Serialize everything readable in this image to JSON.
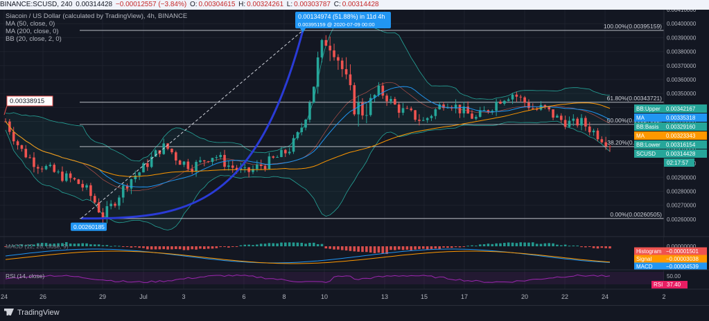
{
  "header": {
    "symbol": "BINANCE:SCUSD, 240",
    "last": "0.00314428",
    "change": "−0.00012557 (−3.84%)",
    "open_label": "O:",
    "open": "0.00304615",
    "high_label": "H:",
    "high": "0.00324261",
    "low_label": "L:",
    "low": "0.00303787",
    "close_label": "C:",
    "close": "0.00314428"
  },
  "legend": {
    "title": "Siacoin / US Dollar (calculated by TradingView), 4h, BINANCE",
    "ma50": "MA (50, close, 0)",
    "ma200": "MA (200, close, 0)",
    "bb": "BB (20, close, 2, 0)"
  },
  "colors": {
    "background": "#131722",
    "up": "#26a69a",
    "down": "#ef5350",
    "ma50": "#2196f3",
    "ma200": "#ff9800",
    "bb_band": "#26a69a",
    "rsi": "#9c27b0",
    "label_blue": "#2196f3",
    "label_red": "#ef5350"
  },
  "chart_data": {
    "type": "candlestick",
    "ylim": [
      0.0025,
      0.0041
    ],
    "y_ticks": [
      "0.00410000",
      "0.00400000",
      "0.00390000",
      "0.00380000",
      "0.00370000",
      "0.00360000",
      "0.00350000",
      "0.00340000",
      "0.00330000",
      "0.00320000",
      "0.00310000",
      "0.00300000",
      "0.00290000",
      "0.00280000",
      "0.00270000",
      "0.00260000"
    ],
    "x_ticks": [
      "24",
      "26",
      "29",
      "Jul",
      "3",
      "6",
      "8",
      "10",
      "13",
      "15",
      "17",
      "20",
      "22",
      "24",
      "2"
    ],
    "close_path": [
      0.0033,
      0.0032,
      0.0031,
      0.00305,
      0.003,
      0.00298,
      0.00295,
      0.00292,
      0.0029,
      0.00288,
      0.00285,
      0.0028,
      0.00272,
      0.00262,
      0.00268,
      0.00276,
      0.00284,
      0.0029,
      0.00294,
      0.003,
      0.00306,
      0.00312,
      0.0031,
      0.00303,
      0.003,
      0.00298,
      0.003,
      0.00304,
      0.00306,
      0.00302,
      0.00298,
      0.00296,
      0.00293,
      0.00295,
      0.00298,
      0.003,
      0.00303,
      0.00306,
      0.0031,
      0.00318,
      0.0033,
      0.0035,
      0.00375,
      0.0039,
      0.00385,
      0.0037,
      0.0035,
      0.0034,
      0.00338,
      0.00345,
      0.00352,
      0.00348,
      0.00342,
      0.00338,
      0.00336,
      0.00333,
      0.0033,
      0.00335,
      0.0034,
      0.00345,
      0.00342,
      0.00338,
      0.00335,
      0.00332,
      0.00336,
      0.0034,
      0.00345,
      0.00348,
      0.0035,
      0.00346,
      0.00342,
      0.00338,
      0.0034,
      0.00336,
      0.00332,
      0.0033,
      0.00328,
      0.0033,
      0.00326,
      0.00322,
      0.00318,
      0.00314
    ],
    "fib_levels": [
      {
        "label": "100.00%(0.00395159)",
        "value": 0.00395159
      },
      {
        "label": "61.80%(0.00343721)",
        "value": 0.00343721
      },
      {
        "label": "50.00%(0.00327832)",
        "value": 0.00327832
      },
      {
        "label": "38.20%(0.00311944)",
        "value": 0.00311944
      },
      {
        "label": "0.00%(0.00260505)",
        "value": 0.00260505
      }
    ],
    "range_label": {
      "line1": "0.00134974 (51.88%) in 11d 4h",
      "line2": "0.00395159 @ 2020-07-09 00:00"
    },
    "low_label": "0.00260185",
    "left_label": "0.00338915",
    "price_labels": [
      {
        "text": "BB:Upper",
        "value": "0.00342167",
        "color": "#26a69a",
        "y": 0.00342167
      },
      {
        "text": "MA",
        "value": "0.00335318",
        "color": "#2196f3",
        "y": 0.00335318
      },
      {
        "text": "BB:Basis",
        "value": "0.00329160",
        "color": "#26a69a",
        "y": 0.0032916
      },
      {
        "text": "MA",
        "value": "0.00323343",
        "color": "#ff9800",
        "y": 0.00323343
      },
      {
        "text": "BB:Lower",
        "value": "0.00316154",
        "color": "#26a69a",
        "y": 0.00316154
      },
      {
        "text": "SCUSD",
        "value": "0.00314428",
        "color": "#26a69a",
        "y": 0.00314428
      }
    ],
    "countdown": "02:17:57",
    "macd": {
      "name": "MACD (12, 26, close, 9)",
      "axis_value": "0.00000000",
      "labels": [
        {
          "text": "Histogram",
          "value": "−0.00001501",
          "color": "#ef5350"
        },
        {
          "text": "Signal",
          "value": "−0.00003038",
          "color": "#ff9800"
        },
        {
          "text": "MACD",
          "value": "−0.00004539",
          "color": "#2196f3"
        }
      ]
    },
    "rsi": {
      "name": "RSI (14, close)",
      "axis_value": "50.00",
      "label": "RSI",
      "value": "37.40"
    }
  },
  "footer": {
    "brand": "TradingView"
  }
}
